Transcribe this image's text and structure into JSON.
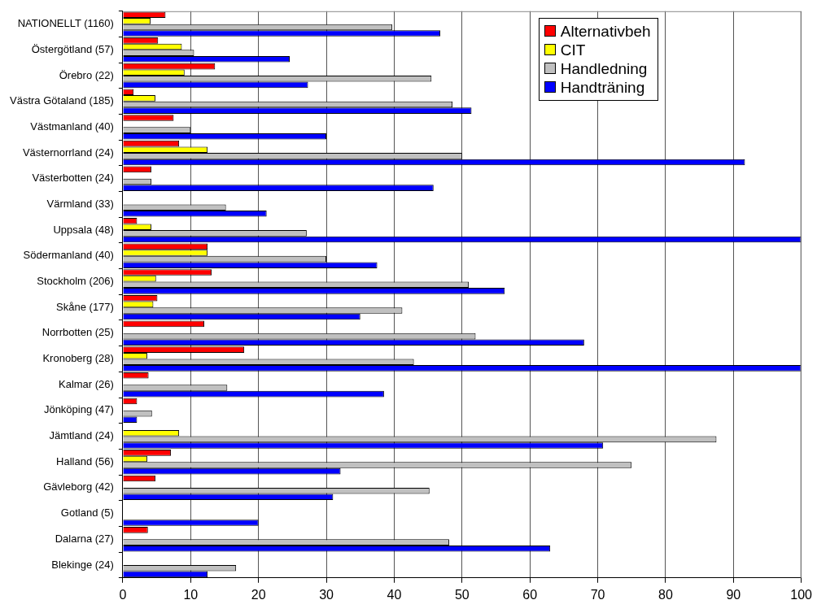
{
  "chart_data": {
    "type": "bar",
    "orientation": "horizontal",
    "categories": [
      "NATIONELLT (1160)",
      "Östergötland (57)",
      "Örebro (22)",
      "Västra Götaland (185)",
      "Västmanland (40)",
      "Västernorrland (24)",
      "Västerbotten (24)",
      "Värmland (33)",
      "Uppsala (48)",
      "Södermanland (40)",
      "Stockholm (206)",
      "Skåne (177)",
      "Norrbotten (25)",
      "Kronoberg (28)",
      "Kalmar (26)",
      "Jönköping (47)",
      "Jämtland (24)",
      "Halland (56)",
      "Gävleborg (42)",
      "Gotland (5)",
      "Dalarna (27)",
      "Blekinge (24)"
    ],
    "series": [
      {
        "name": "Alternativbeh",
        "color": "#ff0000",
        "values": [
          6.3,
          5.2,
          13.6,
          1.6,
          7.5,
          8.3,
          4.2,
          null,
          2.1,
          12.5,
          13.1,
          5.1,
          12,
          17.9,
          3.8,
          2.1,
          null,
          7.1,
          4.8,
          null,
          3.7,
          null
        ]
      },
      {
        "name": "CIT",
        "color": "#ffff00",
        "values": [
          4.1,
          8.7,
          9.1,
          4.8,
          null,
          12.5,
          null,
          null,
          4.2,
          12.5,
          4.9,
          4.5,
          null,
          3.6,
          null,
          null,
          8.3,
          3.6,
          null,
          null,
          null,
          null
        ]
      },
      {
        "name": "Handledning",
        "color": "#c0c0c0",
        "values": [
          39.7,
          10.5,
          45.5,
          48.6,
          10,
          50,
          4.2,
          15.2,
          27.1,
          30,
          51,
          41.2,
          52,
          42.9,
          15.4,
          4.3,
          87.5,
          75,
          45.2,
          null,
          48.1,
          16.7
        ]
      },
      {
        "name": "Handträning",
        "color": "#0000ff",
        "values": [
          46.8,
          24.6,
          27.3,
          51.4,
          30,
          91.7,
          45.8,
          21.2,
          100,
          37.5,
          56.3,
          35,
          68,
          100,
          38.5,
          2.1,
          70.8,
          32.1,
          31,
          20,
          63,
          12.5
        ]
      }
    ],
    "xlim": [
      0,
      100
    ],
    "xticks": [
      0,
      10,
      20,
      30,
      40,
      50,
      60,
      70,
      80,
      90,
      100
    ],
    "grid": "x",
    "legend": "top right"
  }
}
